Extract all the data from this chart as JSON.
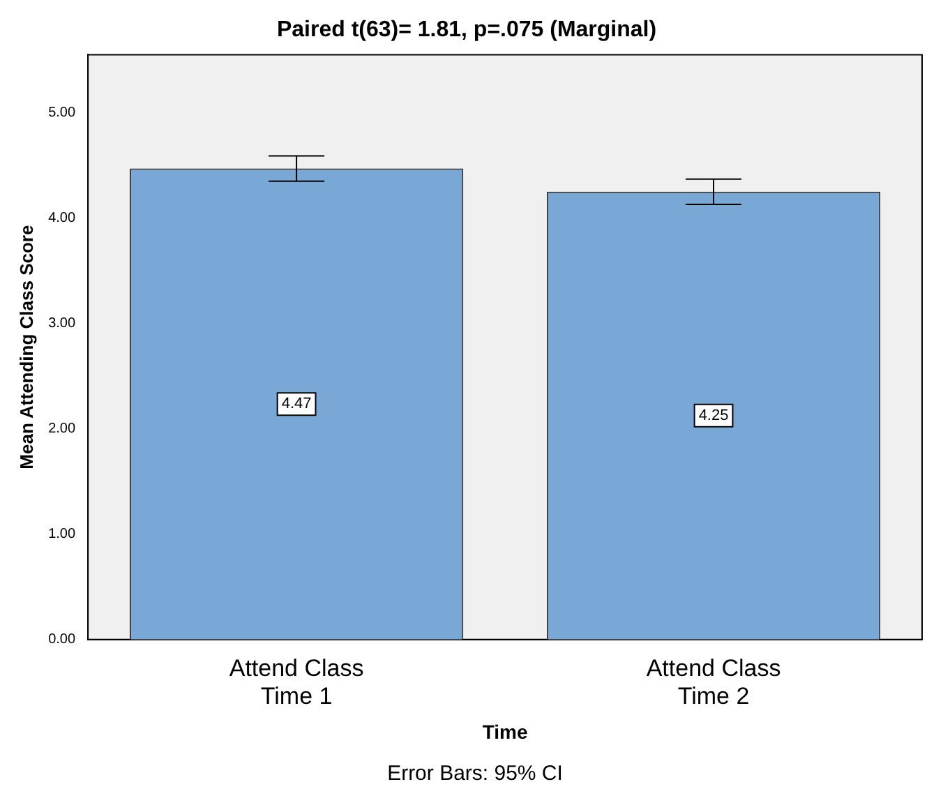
{
  "chart_data": {
    "type": "bar",
    "title": "Paired t(63)= 1.81, p=.075 (Marginal)",
    "xlabel": "Time",
    "ylabel": "Mean Attending Class Score",
    "categories": [
      "Attend Class Time 1",
      "Attend Class Time 2"
    ],
    "values": [
      4.47,
      4.25
    ],
    "color": "#79a8d6",
    "errors": [
      0.12,
      0.12
    ],
    "data_labels": true,
    "ylim": [
      0,
      5.55
    ],
    "yticks": [
      {
        "value": 0,
        "label": "0.00"
      },
      {
        "value": 1,
        "label": "1.00"
      },
      {
        "value": 2,
        "label": "2.00"
      },
      {
        "value": 3,
        "label": "3.00"
      },
      {
        "value": 4,
        "label": "4.00"
      },
      {
        "value": 5,
        "label": "5.00"
      }
    ],
    "grid": false,
    "legend": false,
    "annotations": [
      "Error Bars: 95% CI"
    ]
  }
}
